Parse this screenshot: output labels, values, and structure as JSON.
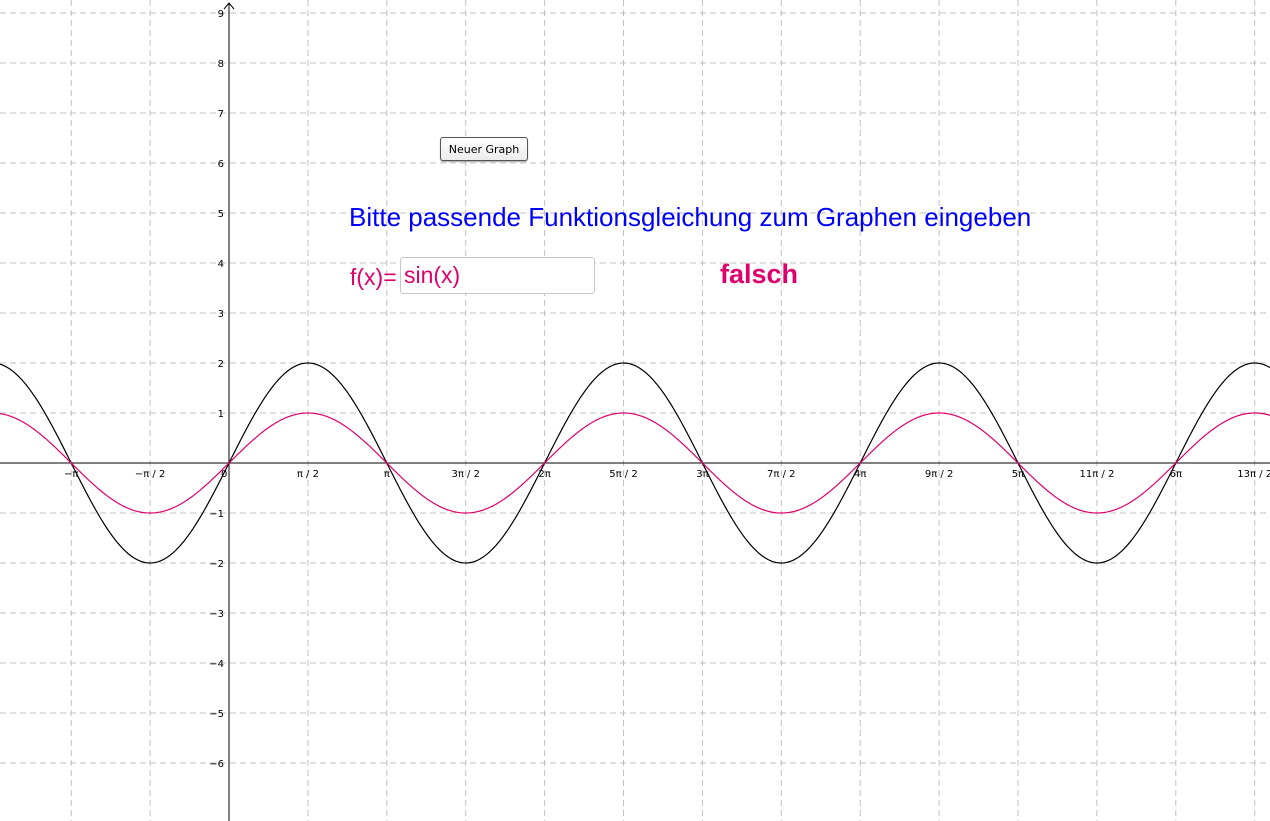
{
  "toolbar": {
    "neuer_graph_label": "Neuer Graph"
  },
  "instruction": "Bitte passende Funktionsgleichung zum Graphen eingeben",
  "input": {
    "prefix": "f(x)=",
    "value": "sin(x)"
  },
  "result": "falsch",
  "colors": {
    "instruction": "#0000ff",
    "answer": "#e0006c",
    "target_curve": "#000000",
    "grid": "#c0c0c0"
  },
  "chart_data": {
    "type": "line",
    "x_range_rad": [
      -2.8912,
      13.1138
    ],
    "y_range": [
      -7.16,
      9.08
    ],
    "grid": true,
    "x_ticks": [
      {
        "value": -3.14159,
        "label": "−π"
      },
      {
        "value": -1.5708,
        "label": "−π / 2"
      },
      {
        "value": 0,
        "label": "0"
      },
      {
        "value": 1.5708,
        "label": "π / 2"
      },
      {
        "value": 3.14159,
        "label": "π"
      },
      {
        "value": 4.71239,
        "label": "3π / 2"
      },
      {
        "value": 6.28319,
        "label": "2π"
      },
      {
        "value": 7.85398,
        "label": "5π / 2"
      },
      {
        "value": 9.42478,
        "label": "3π"
      },
      {
        "value": 10.99557,
        "label": "7π / 2"
      },
      {
        "value": 12.56637,
        "label": "4π"
      },
      {
        "value": 14.13717,
        "label": "9π / 2"
      },
      {
        "value": 15.70796,
        "label": "5π"
      },
      {
        "value": 17.27876,
        "label": "11π / 2"
      },
      {
        "value": 18.84956,
        "label": "6π"
      },
      {
        "value": 20.42035,
        "label": "13π / 2"
      }
    ],
    "y_ticks": [
      {
        "value": 9,
        "label": "9"
      },
      {
        "value": 8,
        "label": "8"
      },
      {
        "value": 7,
        "label": "7"
      },
      {
        "value": 6,
        "label": "6"
      },
      {
        "value": 5,
        "label": "5"
      },
      {
        "value": 4,
        "label": "4"
      },
      {
        "value": 3,
        "label": "3"
      },
      {
        "value": 2,
        "label": "2"
      },
      {
        "value": 1,
        "label": "1"
      },
      {
        "value": -1,
        "label": "−1"
      },
      {
        "value": -2,
        "label": "−2"
      },
      {
        "value": -3,
        "label": "−3"
      },
      {
        "value": -4,
        "label": "−4"
      },
      {
        "value": -5,
        "label": "−5"
      },
      {
        "value": -6,
        "label": "−6"
      }
    ],
    "series": [
      {
        "function": "2·sin(x)",
        "amplitude": 2,
        "color": "#000000"
      },
      {
        "function": "sin(x)",
        "amplitude": 1,
        "color": "#e0006c"
      }
    ]
  }
}
